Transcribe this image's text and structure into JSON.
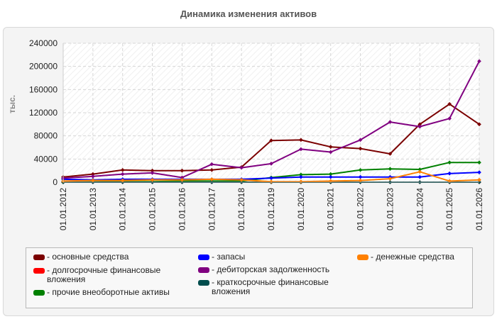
{
  "title": "Динамика изменения активов",
  "chart_data": {
    "type": "line",
    "title": "Динамика изменения активов",
    "ylabel": "тыс.",
    "xlabel": "",
    "ylim": [
      0,
      240000
    ],
    "yticks": [
      "240000",
      "200000",
      "160000",
      "120000",
      "80000",
      "40000",
      "0"
    ],
    "categories": [
      "01.01.2012",
      "01.01.2013",
      "01.01.2014",
      "01.01.2015",
      "01.01.2016",
      "01.01.2017",
      "01.01.2018",
      "01.01.2019",
      "01.01.2020",
      "01.01.2021",
      "01.01.2022",
      "01.01.2023",
      "01.01.2024",
      "01.01.2025",
      "01.01.2026"
    ],
    "grid": true,
    "legend_position": "bottom",
    "series": [
      {
        "name": "основные средства",
        "color": "#7b0000",
        "values": [
          9000,
          14000,
          21000,
          20000,
          20000,
          21000,
          26000,
          72000,
          73000,
          61000,
          58000,
          49000,
          100000,
          135000,
          100000
        ]
      },
      {
        "name": "долгосрочные финансовые вложения",
        "color": "#ff0000",
        "values": [
          0,
          0,
          0,
          0,
          0,
          0,
          0,
          0,
          0,
          0,
          0,
          0,
          0,
          0,
          0
        ]
      },
      {
        "name": "прочие внеоборотные активы",
        "color": "#008000",
        "values": [
          0,
          500,
          1000,
          1000,
          2000,
          2000,
          2000,
          8000,
          13000,
          14000,
          21000,
          23000,
          22000,
          34000,
          34000
        ]
      },
      {
        "name": "запасы",
        "color": "#0000ff",
        "values": [
          5000,
          4000,
          5000,
          5000,
          5000,
          5000,
          5000,
          7000,
          9000,
          9000,
          9000,
          9000,
          9000,
          15000,
          17000
        ]
      },
      {
        "name": "дебиторская задолженность",
        "color": "#800080",
        "values": [
          7000,
          10000,
          14000,
          16000,
          8000,
          31000,
          25000,
          32000,
          57000,
          52000,
          73000,
          104000,
          96000,
          110000,
          209000
        ]
      },
      {
        "name": "краткосрочные финансовые вложения",
        "color": "#004d4d",
        "values": [
          0,
          0,
          0,
          0,
          0,
          0,
          0,
          0,
          0,
          0,
          0,
          0,
          0,
          0,
          0
        ]
      },
      {
        "name": "денежные средства",
        "color": "#ff8000",
        "values": [
          2000,
          3000,
          3000,
          4000,
          4000,
          5000,
          4000,
          1000,
          1000,
          2000,
          3000,
          6000,
          18000,
          2000,
          4000
        ]
      }
    ]
  },
  "legend": {
    "items": [
      {
        "label": "- основные средства",
        "color": "#7b0000"
      },
      {
        "label": "- долгосрочные финансовые вложения",
        "color": "#ff0000"
      },
      {
        "label": "- прочие внеоборотные активы",
        "color": "#008000"
      },
      {
        "label": "- запасы",
        "color": "#0000ff"
      },
      {
        "label": "- дебиторская задолженность",
        "color": "#800080"
      },
      {
        "label": "- краткосрочные финансовые вложения",
        "color": "#004d4d"
      },
      {
        "label": "- денежные средства",
        "color": "#ff8000"
      }
    ]
  }
}
